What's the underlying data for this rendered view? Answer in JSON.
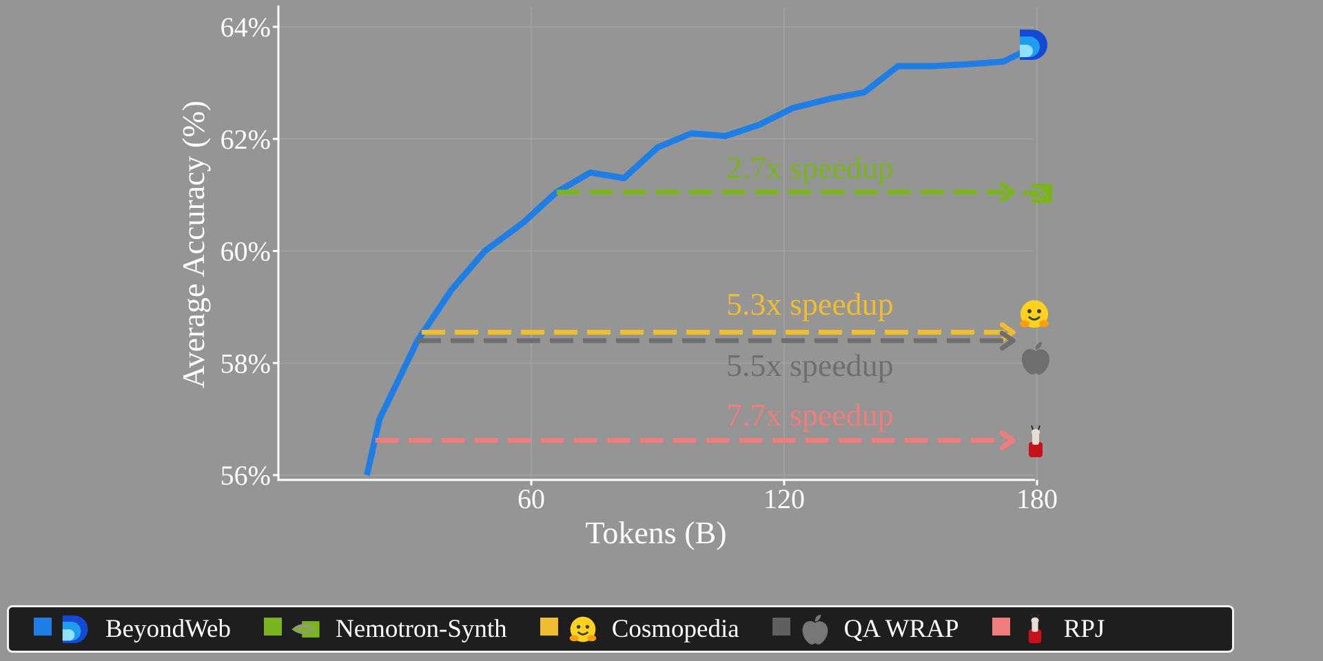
{
  "chart_data": {
    "type": "line",
    "xlabel": "Tokens (B)",
    "ylabel": "Average Accuracy (%)",
    "xlim": [
      0,
      180
    ],
    "ylim": [
      56,
      64
    ],
    "x_ticks": [
      {
        "value": 60,
        "label": "60"
      },
      {
        "value": 120,
        "label": "120"
      },
      {
        "value": 180,
        "label": "180"
      }
    ],
    "y_ticks": [
      {
        "value": 56,
        "label": "56%"
      },
      {
        "value": 58,
        "label": "58%"
      },
      {
        "value": 60,
        "label": "60%"
      },
      {
        "value": 62,
        "label": "62%"
      },
      {
        "value": 64,
        "label": "64%"
      }
    ],
    "grid": true,
    "series": [
      {
        "name": "BeyondWeb",
        "color": "#1f7de6",
        "x": [
          21,
          24,
          33,
          41,
          49,
          58,
          66,
          74,
          82,
          90,
          98,
          106,
          114,
          122,
          131,
          139,
          147,
          155,
          163,
          172,
          178
        ],
        "y": [
          56.0,
          57.0,
          58.4,
          59.3,
          60.0,
          60.5,
          61.05,
          61.4,
          61.3,
          61.85,
          62.1,
          62.05,
          62.25,
          62.55,
          62.72,
          62.83,
          63.3,
          63.3,
          63.33,
          63.38,
          63.6
        ]
      }
    ],
    "reference_arrows": [
      {
        "name": "Nemotron-Synth",
        "color": "#7ab51d",
        "y": 61.05,
        "x_start": 66,
        "x_end": 174,
        "label": "2.7x speedup",
        "icon": "nvidia-logo-icon"
      },
      {
        "name": "Cosmopedia",
        "color": "#f0bd30",
        "y": 58.55,
        "x_start": 34,
        "x_end": 174,
        "label": "5.3x speedup",
        "icon": "hugging-face-icon"
      },
      {
        "name": "QA WRAP",
        "color": "#6e6e6e",
        "y": 58.4,
        "x_start": 33,
        "x_end": 174,
        "label": "5.5x speedup",
        "icon": "apple-logo-icon"
      },
      {
        "name": "RPJ",
        "color": "#f07c7c",
        "y": 56.62,
        "x_start": 23,
        "x_end": 174,
        "label": "7.7x speedup",
        "icon": "llama-icon"
      }
    ],
    "end_icon": {
      "name": "BeyondWeb",
      "icon": "beyondweb-logo-icon",
      "y": 63.7
    }
  },
  "legend": {
    "placement": "bottom",
    "items": [
      {
        "label": "BeyondWeb",
        "color": "#1f7de6",
        "icon": "beyondweb-logo-icon"
      },
      {
        "label": "Nemotron-Synth",
        "color": "#7ab51d",
        "icon": "nvidia-logo-icon"
      },
      {
        "label": "Cosmopedia",
        "color": "#f0bd30",
        "icon": "hugging-face-icon"
      },
      {
        "label": "QA WRAP",
        "color": "#5f5f5f",
        "icon": "apple-logo-icon"
      },
      {
        "label": "RPJ",
        "color": "#f07c7c",
        "icon": "llama-icon"
      }
    ]
  }
}
